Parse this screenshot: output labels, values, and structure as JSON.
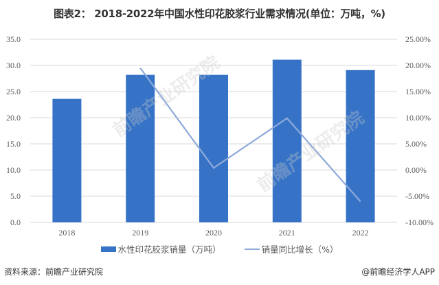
{
  "title": "图表2： 2018-2022年中国水性印花胶浆行业需求情况(单位：万吨，%)",
  "chart_data": {
    "type": "bar",
    "title": "图表2： 2018-2022年中国水性印花胶浆行业需求情况(单位：万吨，%)",
    "categories": [
      "2018",
      "2019",
      "2020",
      "2021",
      "2022"
    ],
    "series": [
      {
        "name": "水性印花胶浆销量（万吨）",
        "type": "bar",
        "axis": "left",
        "color": "#3673c6",
        "values": [
          23.6,
          28.2,
          28.2,
          31.1,
          29.1
        ]
      },
      {
        "name": "销量同比增长（%）",
        "type": "line",
        "axis": "right",
        "color": "#8eaadb",
        "values": [
          null,
          19.5,
          0.4,
          9.9,
          -6.0
        ]
      }
    ],
    "ylim_left": [
      0,
      35
    ],
    "yticks_left": [
      "0.0",
      "5.0",
      "10.0",
      "15.0",
      "20.0",
      "25.0",
      "30.0",
      "35.0"
    ],
    "ylim_right": [
      -10,
      25
    ],
    "yticks_right": [
      "-10.00%",
      "-5.00%",
      "0.00%",
      "5.00%",
      "10.00%",
      "15.00%",
      "20.00%",
      "25.00%"
    ],
    "xlabel": "",
    "ylabel": "",
    "grid": true,
    "legend_position": "bottom"
  },
  "legend": {
    "bar_label": "水性印花胶浆销量（万吨）",
    "line_label": "销量同比增长（%）"
  },
  "footer": {
    "source": "资料来源：前瞻产业研究院",
    "credit": "@前瞻经济学人APP"
  },
  "watermark": "前瞻产业研究院"
}
